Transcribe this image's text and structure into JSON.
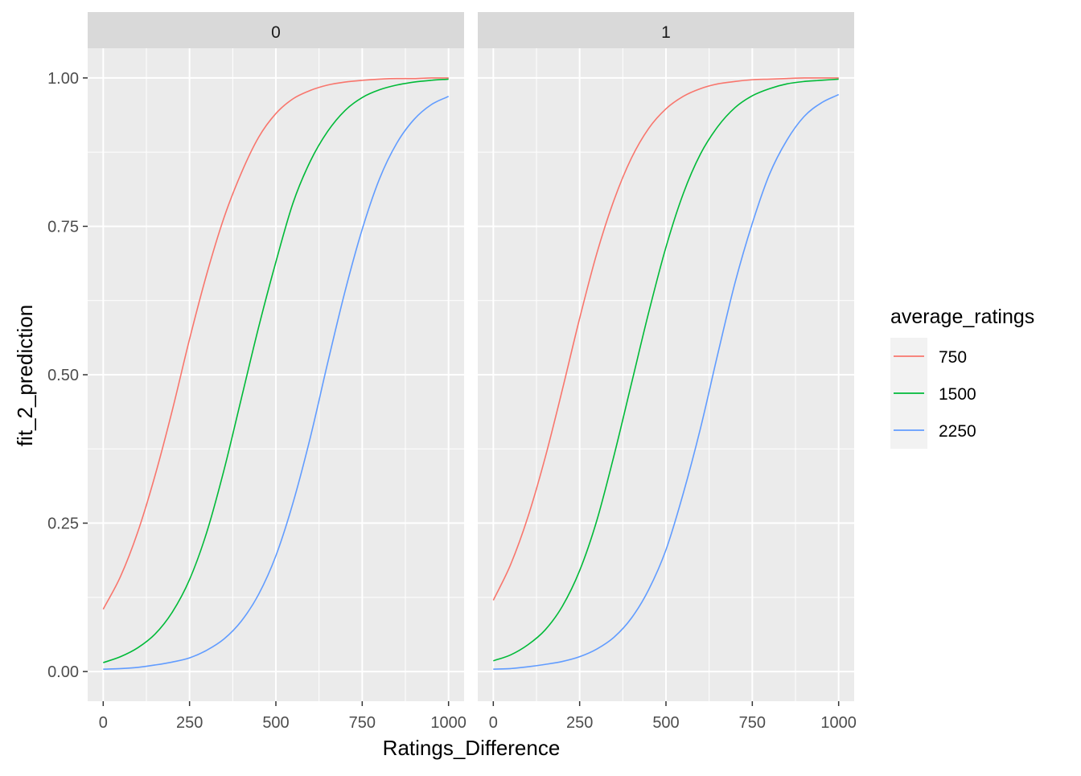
{
  "chart_data": {
    "type": "line",
    "xlabel": "Ratings_Difference",
    "ylabel": "fit_2_prediction",
    "xlim": [
      -45,
      1045
    ],
    "ylim": [
      -0.05,
      1.05
    ],
    "x_ticks": [
      0,
      250,
      500,
      750,
      1000
    ],
    "x_tick_labels": [
      "0",
      "250",
      "500",
      "750",
      "1000"
    ],
    "y_ticks": [
      0,
      0.25,
      0.5,
      0.75,
      1
    ],
    "y_tick_labels": [
      "0.00",
      "0.25",
      "0.50",
      "0.75",
      "1.00"
    ],
    "legend": {
      "title": "average_ratings",
      "position": "right",
      "entries": [
        "750",
        "1500",
        "2250"
      ]
    },
    "colors": {
      "750": "#F8766D",
      "1500": "#00BA38",
      "2250": "#619CFF"
    },
    "panel_background": "#EBEBEB",
    "strip_background": "#D9D9D9",
    "grid": true,
    "facets": [
      {
        "label": "0",
        "series": [
          {
            "name": "750",
            "x": [
              0,
              50,
              100,
              150,
              200,
              250,
              300,
              350,
              400,
              450,
              500,
              550,
              600,
              650,
              700,
              750,
              800,
              850,
              900,
              950,
              1000
            ],
            "y": [
              0.105,
              0.16,
              0.235,
              0.33,
              0.44,
              0.56,
              0.67,
              0.765,
              0.84,
              0.9,
              0.94,
              0.965,
              0.979,
              0.988,
              0.993,
              0.996,
              0.998,
              0.999,
              0.999,
              1.0,
              1.0
            ]
          },
          {
            "name": "1500",
            "x": [
              0,
              50,
              100,
              150,
              200,
              250,
              300,
              350,
              400,
              450,
              500,
              550,
              600,
              650,
              700,
              750,
              800,
              850,
              900,
              950,
              1000
            ],
            "y": [
              0.015,
              0.025,
              0.04,
              0.063,
              0.1,
              0.155,
              0.235,
              0.34,
              0.46,
              0.58,
              0.69,
              0.79,
              0.86,
              0.91,
              0.945,
              0.967,
              0.98,
              0.988,
              0.993,
              0.996,
              0.998
            ]
          },
          {
            "name": "2250",
            "x": [
              0,
              50,
              100,
              150,
              200,
              250,
              300,
              350,
              400,
              450,
              500,
              550,
              600,
              650,
              700,
              750,
              800,
              850,
              900,
              950,
              1000
            ],
            "y": [
              0.004,
              0.005,
              0.007,
              0.011,
              0.016,
              0.023,
              0.036,
              0.055,
              0.085,
              0.13,
              0.195,
              0.285,
              0.395,
              0.52,
              0.64,
              0.745,
              0.83,
              0.89,
              0.93,
              0.955,
              0.969
            ]
          }
        ]
      },
      {
        "label": "1",
        "series": [
          {
            "name": "750",
            "x": [
              0,
              50,
              100,
              150,
              200,
              250,
              300,
              350,
              400,
              450,
              500,
              550,
              600,
              650,
              700,
              750,
              800,
              850,
              900,
              950,
              1000
            ],
            "y": [
              0.12,
              0.18,
              0.26,
              0.36,
              0.475,
              0.595,
              0.705,
              0.795,
              0.865,
              0.915,
              0.948,
              0.969,
              0.982,
              0.99,
              0.994,
              0.997,
              0.998,
              0.999,
              1.0,
              1.0,
              1.0
            ]
          },
          {
            "name": "1500",
            "x": [
              0,
              50,
              100,
              150,
              200,
              250,
              300,
              350,
              400,
              450,
              500,
              550,
              600,
              650,
              700,
              750,
              800,
              850,
              900,
              950,
              1000
            ],
            "y": [
              0.018,
              0.028,
              0.045,
              0.07,
              0.11,
              0.17,
              0.255,
              0.365,
              0.485,
              0.605,
              0.715,
              0.805,
              0.872,
              0.918,
              0.95,
              0.97,
              0.982,
              0.99,
              0.994,
              0.996,
              0.998
            ]
          },
          {
            "name": "2250",
            "x": [
              0,
              50,
              100,
              150,
              200,
              250,
              300,
              350,
              400,
              450,
              500,
              550,
              600,
              650,
              700,
              750,
              800,
              850,
              900,
              950,
              1000
            ],
            "y": [
              0.004,
              0.005,
              0.008,
              0.012,
              0.017,
              0.025,
              0.038,
              0.058,
              0.09,
              0.138,
              0.205,
              0.3,
              0.41,
              0.535,
              0.655,
              0.755,
              0.838,
              0.895,
              0.935,
              0.958,
              0.972
            ]
          }
        ]
      }
    ]
  }
}
